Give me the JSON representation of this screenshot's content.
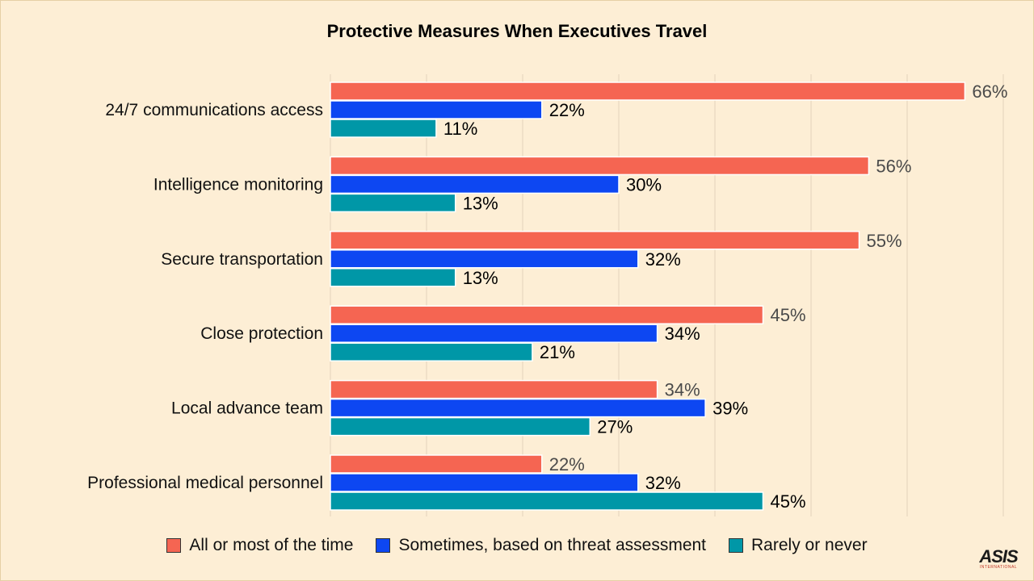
{
  "chart_data": {
    "type": "bar",
    "orientation": "horizontal",
    "title": "Protective Measures When Executives Travel",
    "categories": [
      "24/7 communications access",
      "Intelligence monitoring",
      "Secure transportation",
      "Close protection",
      "Local advance team",
      "Professional medical personnel"
    ],
    "series": [
      {
        "name": "All or most of the time",
        "color": "#f56552",
        "values": [
          66,
          56,
          55,
          45,
          34,
          22
        ]
      },
      {
        "name": "Sometimes, based on threat assessment",
        "color": "#0d47f2",
        "values": [
          22,
          30,
          32,
          34,
          39,
          32
        ]
      },
      {
        "name": "Rarely or never",
        "color": "#0097a7",
        "values": [
          11,
          13,
          13,
          21,
          27,
          45
        ]
      }
    ],
    "value_suffix": "%",
    "xlim": [
      0,
      70
    ],
    "grid": true,
    "legend_position": "bottom"
  },
  "logo": {
    "main": "ASIS",
    "sub": "INTERNATIONAL"
  }
}
